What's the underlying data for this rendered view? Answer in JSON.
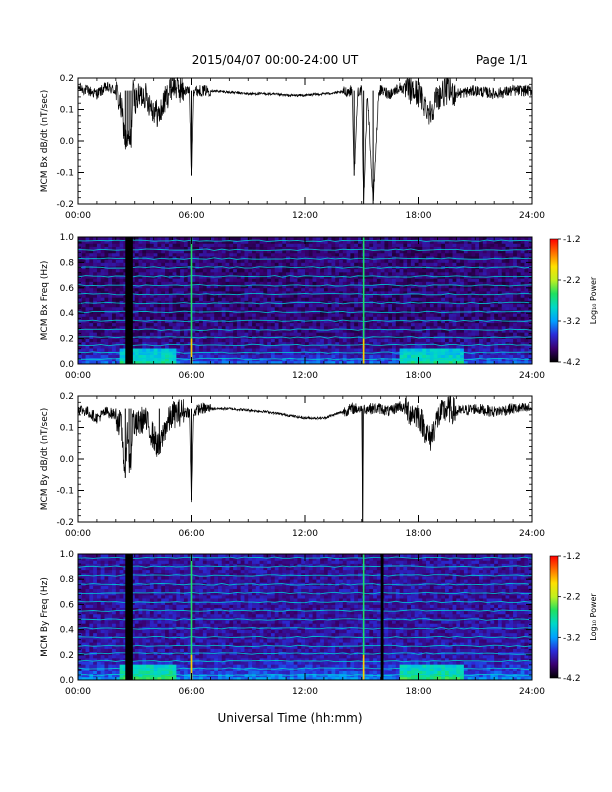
{
  "header": {
    "title": "2015/04/07  00:00-24:00 UT",
    "page_label": "Page 1/1"
  },
  "footer": {
    "xlabel": "Universal Time (hh:mm)"
  },
  "colorbar": {
    "label": "Log₁₀ Power",
    "ticks": [
      "-1.2",
      "-2.2",
      "-3.2",
      "-4.2"
    ],
    "colors": [
      "#000000",
      "#3a0070",
      "#2a2cd8",
      "#00a0ff",
      "#00d8c8",
      "#20e060",
      "#c0f020",
      "#ffe000",
      "#ff7000",
      "#ff0000"
    ]
  },
  "chart_data": [
    {
      "type": "line",
      "title": "",
      "xlabel": "",
      "ylabel": "MCM Bx dB/dt (nT/sec)",
      "xlim": [
        0,
        24
      ],
      "ylim": [
        -0.2,
        0.2
      ],
      "x_ticks": [
        "00:00",
        "06:00",
        "12:00",
        "18:00",
        "24:00"
      ],
      "y_ticks": [
        "0.2",
        "0.1",
        "0.0",
        "-0.1",
        "-0.2"
      ],
      "series": [
        {
          "color": "#000000",
          "x": [
            0.0,
            0.5,
            1.0,
            1.5,
            2.0,
            2.3,
            2.5,
            2.6,
            2.7,
            2.8,
            2.9,
            3.0,
            3.5,
            4.0,
            4.3,
            4.6,
            5.0,
            5.5,
            5.9,
            6.0,
            6.1,
            6.5,
            7.0,
            8.0,
            9.0,
            10.0,
            11.0,
            12.0,
            13.0,
            14.0,
            14.5,
            14.6,
            14.8,
            15.0,
            15.1,
            15.3,
            15.6,
            15.9,
            16.0,
            16.5,
            17.0,
            17.5,
            18.0,
            18.3,
            18.6,
            19.0,
            19.5,
            20.0,
            21.0,
            22.0,
            23.0,
            24.0
          ],
          "y": [
            0.17,
            0.16,
            0.15,
            0.17,
            0.16,
            0.1,
            0.0,
            0.0,
            0.0,
            0.0,
            0.16,
            0.13,
            0.15,
            0.1,
            0.08,
            0.13,
            0.18,
            0.16,
            0.16,
            -0.11,
            0.16,
            0.16,
            0.16,
            0.155,
            0.15,
            0.15,
            0.145,
            0.145,
            0.15,
            0.155,
            0.16,
            -0.11,
            0.16,
            0.16,
            -0.2,
            0.16,
            -0.2,
            0.16,
            0.16,
            0.15,
            0.17,
            0.16,
            0.15,
            0.12,
            0.09,
            0.14,
            0.16,
            0.15,
            0.16,
            0.15,
            0.16,
            0.16
          ]
        }
      ]
    },
    {
      "type": "heatmap",
      "title": "",
      "xlabel": "",
      "ylabel": "MCM Bx Freq (Hz)",
      "zlabel": "Log₁₀ Power",
      "xlim": [
        0,
        24
      ],
      "ylim": [
        0,
        1.0
      ],
      "zlim": [
        -4.2,
        -1.2
      ],
      "x_ticks": [
        "00:00",
        "06:00",
        "12:00",
        "18:00",
        "24:00"
      ],
      "y_ticks": [
        "1.0",
        "0.8",
        "0.6",
        "0.4",
        "0.2",
        "0.0"
      ],
      "harmonic_lines_hz": [
        0.04,
        0.09,
        0.15,
        0.21,
        0.27,
        0.34,
        0.41,
        0.48,
        0.55,
        0.62,
        0.69,
        0.76,
        0.83,
        0.9,
        0.97
      ],
      "data_gaps_hours": [
        [
          2.5,
          2.9
        ]
      ],
      "broadband_times_hours": [
        6.0,
        15.1
      ],
      "low_freq_enhancement_hours": [
        [
          2.2,
          5.3
        ],
        [
          17.0,
          20.5
        ]
      ]
    },
    {
      "type": "line",
      "title": "",
      "xlabel": "",
      "ylabel": "MCM By dB/dt (nT/sec)",
      "xlim": [
        0,
        24
      ],
      "ylim": [
        -0.2,
        0.2
      ],
      "x_ticks": [
        "00:00",
        "06:00",
        "12:00",
        "18:00",
        "24:00"
      ],
      "y_ticks": [
        "0.2",
        "0.1",
        "0.0",
        "-0.1",
        "-0.2"
      ],
      "series": [
        {
          "color": "#000000",
          "x": [
            0.0,
            0.5,
            1.0,
            1.5,
            2.0,
            2.3,
            2.5,
            2.6,
            2.7,
            2.8,
            2.9,
            3.0,
            3.5,
            4.0,
            4.3,
            4.6,
            5.0,
            5.5,
            5.9,
            6.0,
            6.1,
            6.5,
            7.0,
            8.0,
            9.0,
            10.0,
            11.0,
            12.0,
            13.0,
            14.0,
            14.5,
            15.0,
            15.05,
            15.1,
            15.15,
            15.5,
            16.0,
            16.5,
            17.0,
            17.5,
            18.0,
            18.3,
            18.6,
            19.0,
            19.5,
            20.0,
            21.0,
            22.0,
            23.0,
            24.0
          ],
          "y": [
            0.16,
            0.15,
            0.13,
            0.15,
            0.14,
            0.1,
            -0.06,
            0.12,
            -0.01,
            0.0,
            0.14,
            0.1,
            0.13,
            0.07,
            0.03,
            0.1,
            0.14,
            0.15,
            0.15,
            -0.13,
            0.15,
            0.16,
            0.16,
            0.16,
            0.155,
            0.15,
            0.14,
            0.13,
            0.13,
            0.15,
            0.16,
            0.16,
            -0.2,
            0.16,
            0.16,
            0.16,
            0.16,
            0.15,
            0.17,
            0.15,
            0.14,
            0.1,
            0.06,
            0.13,
            0.16,
            0.15,
            0.16,
            0.15,
            0.16,
            0.16
          ]
        }
      ]
    },
    {
      "type": "heatmap",
      "title": "",
      "xlabel": "",
      "ylabel": "MCM By Freq (Hz)",
      "zlabel": "Log₁₀ Power",
      "xlim": [
        0,
        24
      ],
      "ylim": [
        0,
        1.0
      ],
      "zlim": [
        -4.2,
        -1.2
      ],
      "x_ticks": [
        "00:00",
        "06:00",
        "12:00",
        "18:00",
        "24:00"
      ],
      "y_ticks": [
        "1.0",
        "0.8",
        "0.6",
        "0.4",
        "0.2",
        "0.0"
      ],
      "harmonic_lines_hz": [
        0.04,
        0.09,
        0.15,
        0.21,
        0.27,
        0.34,
        0.41,
        0.48,
        0.55,
        0.62,
        0.69,
        0.76,
        0.83,
        0.9,
        0.97
      ],
      "data_gaps_hours": [
        [
          2.5,
          2.9
        ],
        [
          16.0,
          16.15
        ]
      ],
      "broadband_times_hours": [
        6.0,
        15.1
      ],
      "low_freq_enhancement_hours": [
        [
          2.2,
          5.3
        ],
        [
          17.0,
          20.5
        ]
      ]
    }
  ]
}
